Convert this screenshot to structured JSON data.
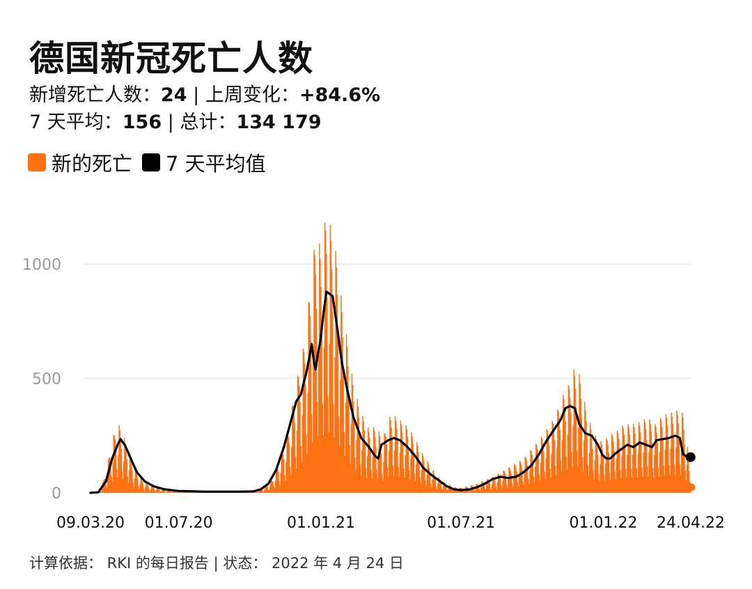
{
  "header": {
    "title": "德国新冠死亡人数",
    "line1": {
      "label_daily": "新增死亡人数：",
      "value_daily": "24",
      "label_week": "| 上周变化：",
      "value_week": "+84.6%"
    },
    "line2": {
      "label_avg": "7 天平均：",
      "value_avg": "156",
      "label_total": "| 总计：",
      "value_total": "134 179"
    }
  },
  "colors": {
    "daily": "#ff7214",
    "avg": "#000000",
    "grid": "#e6e6e6",
    "tick": "#9a9a9a"
  },
  "chart_data": {
    "type": "bar",
    "ylim": [
      0,
      1250
    ],
    "y_ticks": [
      0,
      500,
      1000
    ],
    "x_ticks": [
      "09.03.20",
      "01.07.20",
      "01.01.21",
      "01.07.21",
      "01.01.22",
      "24.04.22"
    ],
    "x_tick_days": [
      0,
      114,
      298,
      479,
      663,
      776
    ],
    "total_days": 776,
    "series": [
      {
        "name": "新的死亡",
        "kind": "daily-bars",
        "weekly_envelope": [
          [
            0,
            0
          ],
          [
            7,
            2
          ],
          [
            14,
            20
          ],
          [
            21,
            110
          ],
          [
            28,
            230
          ],
          [
            35,
            310
          ],
          [
            42,
            260
          ],
          [
            49,
            190
          ],
          [
            56,
            120
          ],
          [
            63,
            75
          ],
          [
            70,
            45
          ],
          [
            80,
            28
          ],
          [
            95,
            15
          ],
          [
            114,
            8
          ],
          [
            150,
            6
          ],
          [
            190,
            6
          ],
          [
            215,
            10
          ],
          [
            225,
            25
          ],
          [
            235,
            60
          ],
          [
            245,
            150
          ],
          [
            255,
            270
          ],
          [
            262,
            400
          ],
          [
            270,
            550
          ],
          [
            278,
            680
          ],
          [
            285,
            950
          ],
          [
            292,
            1150
          ],
          [
            298,
            1060
          ],
          [
            305,
            1230
          ],
          [
            312,
            1150
          ],
          [
            319,
            1020
          ],
          [
            326,
            800
          ],
          [
            333,
            650
          ],
          [
            340,
            470
          ],
          [
            350,
            350
          ],
          [
            360,
            280
          ],
          [
            370,
            290
          ],
          [
            378,
            230
          ],
          [
            385,
            330
          ],
          [
            392,
            340
          ],
          [
            400,
            320
          ],
          [
            410,
            290
          ],
          [
            418,
            250
          ],
          [
            428,
            180
          ],
          [
            436,
            140
          ],
          [
            446,
            80
          ],
          [
            456,
            50
          ],
          [
            470,
            25
          ],
          [
            479,
            22
          ],
          [
            500,
            40
          ],
          [
            520,
            70
          ],
          [
            540,
            110
          ],
          [
            560,
            150
          ],
          [
            580,
            230
          ],
          [
            600,
            330
          ],
          [
            610,
            420
          ],
          [
            618,
            470
          ],
          [
            625,
            540
          ],
          [
            632,
            520
          ],
          [
            640,
            380
          ],
          [
            648,
            280
          ],
          [
            655,
            240
          ],
          [
            662,
            220
          ],
          [
            670,
            250
          ],
          [
            680,
            270
          ],
          [
            690,
            300
          ],
          [
            700,
            300
          ],
          [
            710,
            310
          ],
          [
            720,
            330
          ],
          [
            730,
            300
          ],
          [
            740,
            340
          ],
          [
            750,
            350
          ],
          [
            758,
            360
          ],
          [
            766,
            350
          ],
          [
            772,
            200
          ],
          [
            776,
            24
          ]
        ]
      },
      {
        "name": "7 天平均值",
        "kind": "line",
        "points": [
          [
            0,
            0
          ],
          [
            10,
            2
          ],
          [
            20,
            50
          ],
          [
            28,
            150
          ],
          [
            35,
            210
          ],
          [
            39,
            235
          ],
          [
            45,
            205
          ],
          [
            52,
            150
          ],
          [
            60,
            90
          ],
          [
            70,
            50
          ],
          [
            82,
            28
          ],
          [
            95,
            16
          ],
          [
            114,
            8
          ],
          [
            150,
            5
          ],
          [
            190,
            5
          ],
          [
            210,
            6
          ],
          [
            220,
            15
          ],
          [
            230,
            40
          ],
          [
            240,
            100
          ],
          [
            250,
            200
          ],
          [
            258,
            300
          ],
          [
            266,
            400
          ],
          [
            272,
            430
          ],
          [
            280,
            540
          ],
          [
            286,
            650
          ],
          [
            289,
            570
          ],
          [
            291,
            540
          ],
          [
            294,
            610
          ],
          [
            297,
            660
          ],
          [
            301,
            780
          ],
          [
            305,
            880
          ],
          [
            309,
            870
          ],
          [
            313,
            860
          ],
          [
            319,
            720
          ],
          [
            325,
            570
          ],
          [
            332,
            450
          ],
          [
            340,
            330
          ],
          [
            350,
            240
          ],
          [
            360,
            200
          ],
          [
            368,
            160
          ],
          [
            372,
            150
          ],
          [
            376,
            210
          ],
          [
            385,
            230
          ],
          [
            392,
            240
          ],
          [
            400,
            230
          ],
          [
            410,
            200
          ],
          [
            420,
            160
          ],
          [
            430,
            110
          ],
          [
            440,
            80
          ],
          [
            450,
            55
          ],
          [
            460,
            30
          ],
          [
            470,
            15
          ],
          [
            479,
            12
          ],
          [
            490,
            15
          ],
          [
            500,
            25
          ],
          [
            510,
            40
          ],
          [
            520,
            60
          ],
          [
            530,
            70
          ],
          [
            540,
            65
          ],
          [
            550,
            70
          ],
          [
            560,
            90
          ],
          [
            570,
            120
          ],
          [
            580,
            170
          ],
          [
            590,
            230
          ],
          [
            600,
            280
          ],
          [
            608,
            320
          ],
          [
            614,
            370
          ],
          [
            620,
            380
          ],
          [
            626,
            370
          ],
          [
            632,
            300
          ],
          [
            640,
            260
          ],
          [
            648,
            250
          ],
          [
            656,
            210
          ],
          [
            662,
            165
          ],
          [
            667,
            150
          ],
          [
            672,
            150
          ],
          [
            678,
            170
          ],
          [
            686,
            190
          ],
          [
            694,
            210
          ],
          [
            702,
            200
          ],
          [
            710,
            220
          ],
          [
            718,
            210
          ],
          [
            726,
            200
          ],
          [
            732,
            230
          ],
          [
            740,
            235
          ],
          [
            748,
            240
          ],
          [
            756,
            250
          ],
          [
            762,
            240
          ],
          [
            766,
            170
          ],
          [
            770,
            160
          ],
          [
            774,
            156
          ]
        ],
        "end_value": 156
      }
    ]
  },
  "footer": {
    "text": "计算依据：  RKI 的每日报告 | 状态：  2022 年 4 月 24 日"
  }
}
